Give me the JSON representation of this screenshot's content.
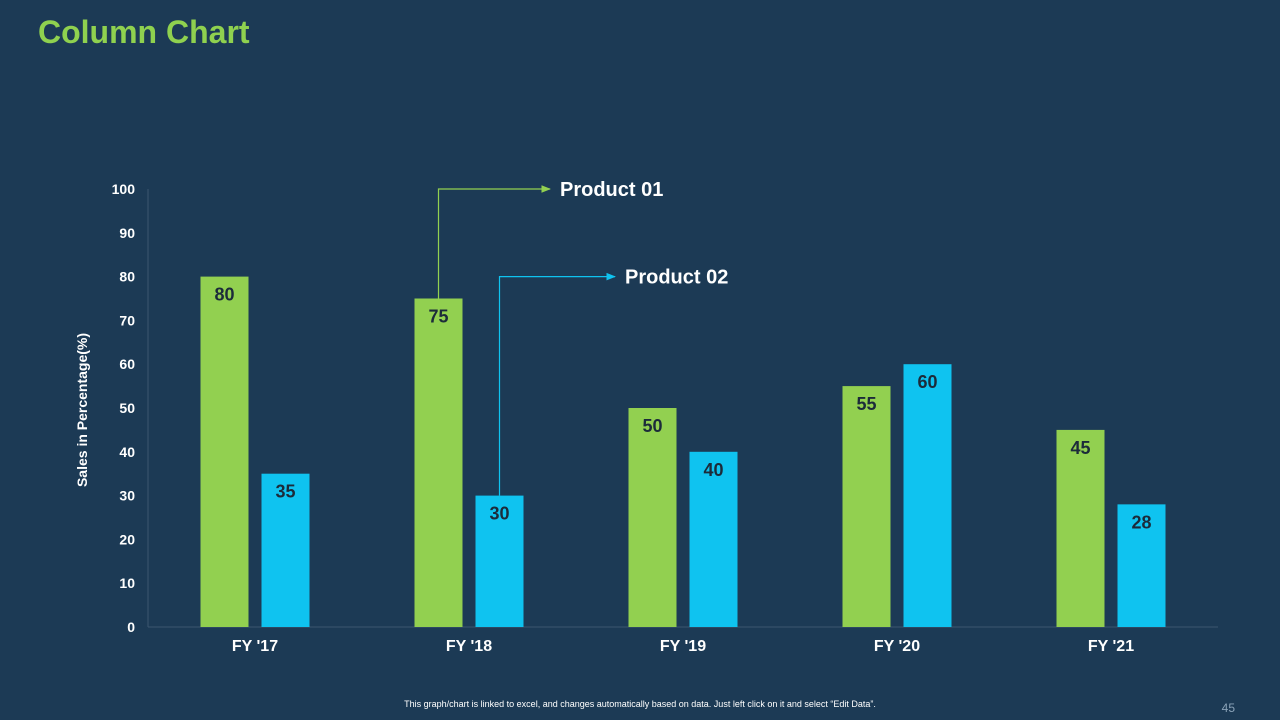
{
  "slide": {
    "title": "Column Chart",
    "footnote": "This graph/chart is linked to excel, and changes automatically based on data. Just left click on it and select “Edit Data”.",
    "page_number": "45"
  },
  "colors": {
    "background": "#1c3a55",
    "title": "#8fd14f",
    "product_01": "#92d050",
    "product_02": "#0fc3f0",
    "text": "#ffffff",
    "label": "#1c2b3a",
    "axis": "#3b5670"
  },
  "chart_data": {
    "type": "bar",
    "title": "",
    "xlabel": "",
    "ylabel": "Sales in Percentage(%)",
    "ylim": [
      0,
      100
    ],
    "yticks": [
      "0",
      "10",
      "20",
      "30",
      "40",
      "50",
      "60",
      "70",
      "80",
      "90",
      "100"
    ],
    "categories": [
      "FY '17",
      "FY '18",
      "FY '19",
      "FY '20",
      "FY '21"
    ],
    "series": [
      {
        "name": "Product 01",
        "color": "#92d050",
        "values": [
          80,
          75,
          50,
          55,
          45
        ]
      },
      {
        "name": "Product 02",
        "color": "#0fc3f0",
        "values": [
          35,
          30,
          40,
          60,
          28
        ]
      }
    ],
    "legend": "callouts"
  }
}
